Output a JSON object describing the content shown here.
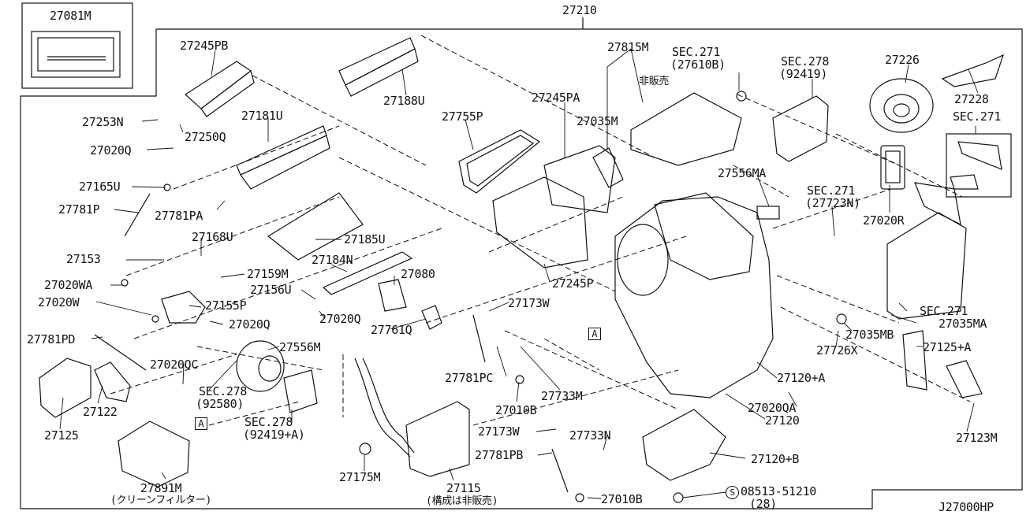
{
  "diagram_code": "J27000HP",
  "callouts": {
    "c27081M": "27081M",
    "c27210": "27210",
    "c27245PB": "27245PB",
    "c27188U": "27188U",
    "c27815M": "27815M",
    "c27815M_note": "非販売",
    "sec271a": "SEC.271",
    "sec271a_ref": "(27610B)",
    "sec278a": "SEC.278",
    "sec278a_ref": "(92419)",
    "c27226": "27226",
    "c27228": "27228",
    "sec271b": "SEC.271",
    "c27253N": "27253N",
    "c27250Q": "27250Q",
    "c27181U": "27181U",
    "c27755P": "27755P",
    "c27245PA": "27245PA",
    "c27035M": "27035M",
    "c27020Q_a": "27020Q",
    "c27556MA": "27556MA",
    "sec271c": "SEC.271",
    "sec271c_ref": "(27723N)",
    "c27020R": "27020R",
    "c27165U": "27165U",
    "c27781P": "27781P",
    "c27781PA": "27781PA",
    "c27153": "27153",
    "c27168U": "27168U",
    "c27185U": "27185U",
    "c27184N": "27184N",
    "c27159M": "27159M",
    "c27080": "27080",
    "c27245P": "27245P",
    "c27020WA": "27020WA",
    "c27156U": "27156U",
    "c27155P": "27155P",
    "c27020W": "27020W",
    "c27173W_a": "27173W",
    "sec271d": "SEC.271",
    "c27035MA": "27035MA",
    "c27020Q_b": "27020Q",
    "c27020Q_c": "27020Q",
    "c27761Q": "27761Q",
    "c27035MB": "27035MB",
    "c27781PD": "27781PD",
    "c27556M": "27556M",
    "c27125A": "27125+A",
    "c27726X": "27726X",
    "c27020QC": "27020QC",
    "sec278b": "SEC.278",
    "sec278b_ref": "(92580)",
    "c27781PC": "27781PC",
    "c27733M": "27733M",
    "c27120A": "27120+A",
    "c27122": "27122",
    "c27125": "27125",
    "c27010B_a": "27010B",
    "c27020QA": "27020QA",
    "c27120": "27120",
    "sec278c": "SEC.278",
    "sec278c_ref": "(92419+A)",
    "c27173W_b": "27173W",
    "c27733N": "27733N",
    "c27123M": "27123M",
    "c27781PB": "27781PB",
    "c27120B": "27120+B",
    "c27175M": "27175M",
    "c27115": "27115",
    "c27115_note": "(構成は非販売)",
    "c27891M": "27891M",
    "c27891M_note": "(クリーンフィルター)",
    "c27010B_b": "27010B",
    "bolt_symbol": "S",
    "bolt": "08513-51210",
    "bolt_qty": "(28)",
    "markA_1": "A",
    "markA_2": "A"
  }
}
